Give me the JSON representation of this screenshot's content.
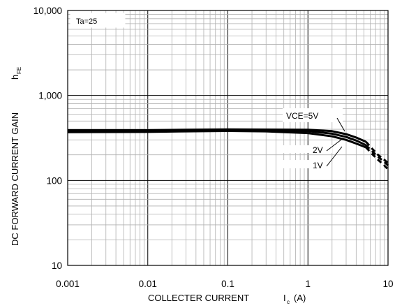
{
  "chart_data": {
    "type": "line",
    "xscale": "log",
    "yscale": "log",
    "xlim": [
      0.001,
      10
    ],
    "ylim": [
      10,
      10000
    ],
    "grid": true,
    "x_tick_labels": [
      "0.001",
      "0.01",
      "0.1",
      "1",
      "10"
    ],
    "y_tick_labels": [
      "10",
      "100",
      "1,000",
      "10,000"
    ],
    "xlabel": "COLLECTER CURRENT",
    "xlabel_symbol": "I",
    "xlabel_subscript": "c",
    "xlabel_unit": "(A)",
    "ylabel": "DC FORWARD CURRENT GAIN",
    "ylabel_symbol": "h",
    "ylabel_subscript": "FE",
    "condition": "Ta=25",
    "series": [
      {
        "name": "VCE=5V",
        "points": [
          [
            0.001,
            390
          ],
          [
            0.01,
            390
          ],
          [
            0.03,
            395
          ],
          [
            0.1,
            398
          ],
          [
            0.3,
            397
          ],
          [
            1,
            395
          ],
          [
            2,
            380
          ],
          [
            3,
            350
          ],
          [
            4,
            320
          ],
          [
            5.3,
            285
          ]
        ],
        "tail": [
          [
            6.5,
            230
          ],
          [
            7.5,
            200
          ],
          [
            9,
            175
          ],
          [
            10,
            160
          ]
        ]
      },
      {
        "name": "2V",
        "points": [
          [
            0.001,
            385
          ],
          [
            0.01,
            386
          ],
          [
            0.03,
            390
          ],
          [
            0.1,
            392
          ],
          [
            0.3,
            390
          ],
          [
            1,
            380
          ],
          [
            2,
            355
          ],
          [
            3,
            325
          ],
          [
            4,
            295
          ],
          [
            5.3,
            260
          ]
        ],
        "tail": [
          [
            6.5,
            215
          ],
          [
            7.5,
            190
          ],
          [
            9,
            165
          ],
          [
            10,
            150
          ]
        ]
      },
      {
        "name": "1V",
        "points": [
          [
            0.001,
            370
          ],
          [
            0.01,
            372
          ],
          [
            0.03,
            378
          ],
          [
            0.1,
            382
          ],
          [
            0.3,
            378
          ],
          [
            1,
            360
          ],
          [
            2,
            330
          ],
          [
            3,
            300
          ],
          [
            4,
            272
          ],
          [
            5.3,
            245
          ]
        ],
        "tail": [
          [
            6.5,
            200
          ],
          [
            7.5,
            175
          ],
          [
            9,
            150
          ],
          [
            10,
            135
          ]
        ]
      }
    ],
    "labels": [
      {
        "series": "VCE=5V",
        "text": "VCE=5V",
        "at": [
          1.5,
          380
        ]
      },
      {
        "series": "2V",
        "text": "2V",
        "at": [
          2.0,
          355
        ]
      },
      {
        "series": "1V",
        "text": "1V",
        "at": [
          2.2,
          330
        ]
      }
    ]
  }
}
